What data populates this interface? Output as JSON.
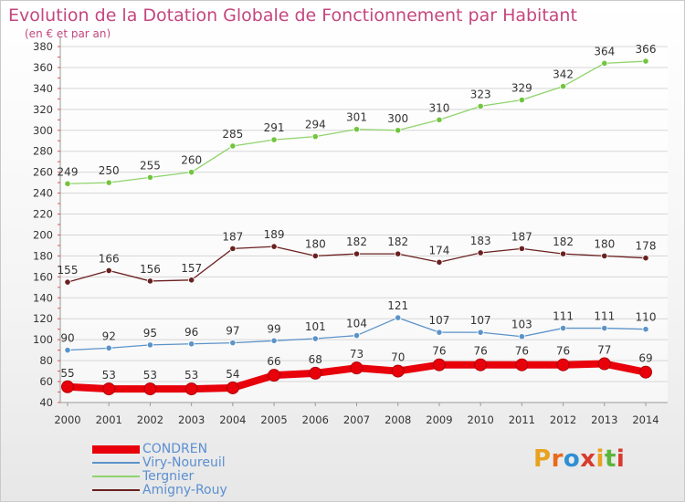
{
  "header": {
    "title": "Evolution de la Dotation Globale de Fonctionnement par Habitant",
    "subtitle": "(en € et par an)"
  },
  "logo": {
    "text": "Proxiti",
    "colors": [
      "#e8a21f",
      "#e86a1c",
      "#2e8fd4",
      "#d93a2e",
      "#e8a21f",
      "#5bb53a",
      "#d93a2e"
    ]
  },
  "chart_data": {
    "type": "line",
    "categories": [
      "2000",
      "2001",
      "2002",
      "2003",
      "2004",
      "2005",
      "2006",
      "2007",
      "2008",
      "2009",
      "2010",
      "2011",
      "2012",
      "2013",
      "2014"
    ],
    "ylim": [
      40,
      380
    ],
    "yticks": [
      40,
      60,
      80,
      100,
      120,
      140,
      160,
      180,
      200,
      220,
      240,
      260,
      280,
      300,
      320,
      340,
      360,
      380
    ],
    "grid": "horizontal",
    "legend_position": "bottom-left",
    "series": [
      {
        "name": "CONDREN",
        "color": "#e8000b",
        "marker": "#e8000b",
        "emphasis": true,
        "values": [
          55,
          53,
          53,
          53,
          54,
          66,
          68,
          73,
          70,
          76,
          76,
          76,
          76,
          77,
          69
        ]
      },
      {
        "name": "Viry-Noureuil",
        "color": "#5b93c9",
        "marker": "#5b93c9",
        "emphasis": false,
        "values": [
          90,
          92,
          95,
          96,
          97,
          99,
          101,
          104,
          121,
          107,
          107,
          103,
          111,
          111,
          110
        ]
      },
      {
        "name": "Tergnier",
        "color": "#8fd36b",
        "marker": "#72c53f",
        "emphasis": false,
        "values": [
          249,
          250,
          255,
          260,
          285,
          291,
          294,
          301,
          300,
          310,
          323,
          329,
          342,
          364,
          366
        ]
      },
      {
        "name": "Amigny-Rouy",
        "color": "#6b2020",
        "marker": "#6b2020",
        "emphasis": false,
        "values": [
          155,
          166,
          156,
          157,
          187,
          189,
          180,
          182,
          182,
          174,
          183,
          187,
          182,
          180,
          178
        ]
      }
    ]
  }
}
